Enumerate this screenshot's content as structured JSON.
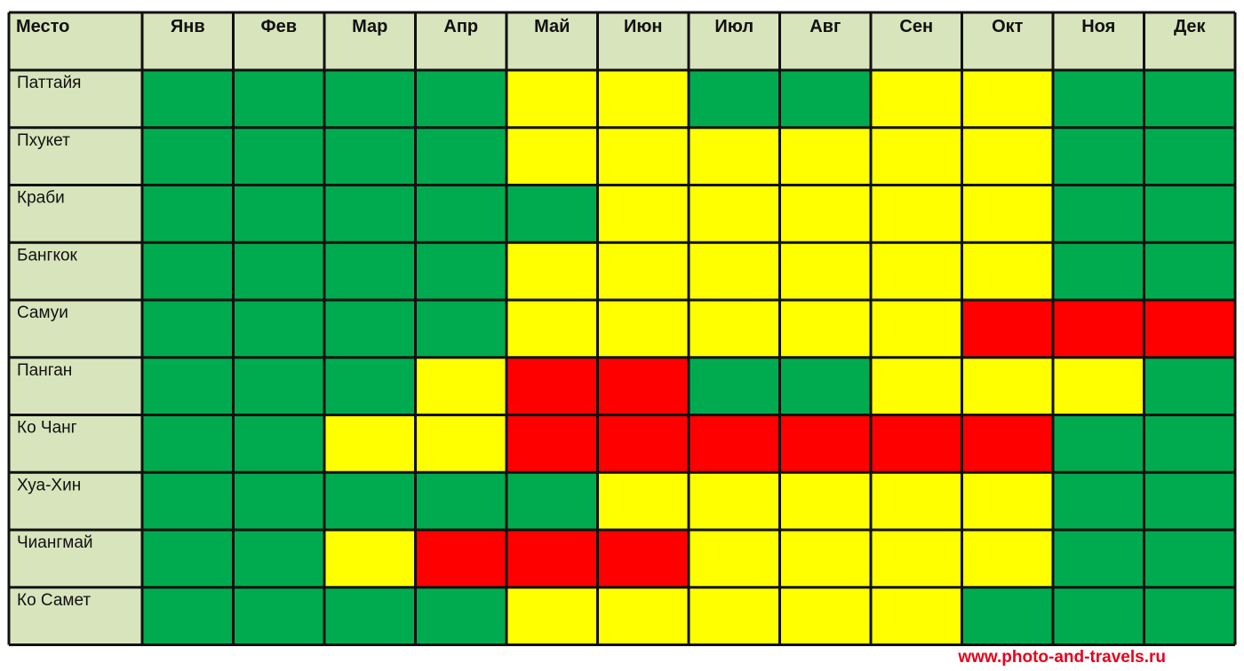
{
  "colors": {
    "good": "#00ab4f",
    "medium": "#ffff00",
    "bad": "#ff0000",
    "header_bg": "#d8e4bc",
    "grid": "#111111"
  },
  "watermark": "www.photo-and-travels.ru",
  "chart_data": {
    "type": "heatmap",
    "corner_label": "Место",
    "columns": [
      "Янв",
      "Фев",
      "Мар",
      "Апр",
      "Май",
      "Июн",
      "Июл",
      "Авг",
      "Сен",
      "Окт",
      "Ноя",
      "Дек"
    ],
    "rows": [
      {
        "name": "Паттайя",
        "values": [
          "good",
          "good",
          "good",
          "good",
          "medium",
          "medium",
          "good",
          "good",
          "medium",
          "medium",
          "good",
          "good"
        ]
      },
      {
        "name": "Пхукет",
        "values": [
          "good",
          "good",
          "good",
          "good",
          "medium",
          "medium",
          "medium",
          "medium",
          "medium",
          "medium",
          "good",
          "good"
        ]
      },
      {
        "name": "Краби",
        "values": [
          "good",
          "good",
          "good",
          "good",
          "good",
          "medium",
          "medium",
          "medium",
          "medium",
          "medium",
          "good",
          "good"
        ]
      },
      {
        "name": "Бангкок",
        "values": [
          "good",
          "good",
          "good",
          "good",
          "medium",
          "medium",
          "medium",
          "medium",
          "medium",
          "medium",
          "good",
          "good"
        ]
      },
      {
        "name": "Самуи",
        "values": [
          "good",
          "good",
          "good",
          "good",
          "medium",
          "medium",
          "medium",
          "medium",
          "medium",
          "bad",
          "bad",
          "bad"
        ]
      },
      {
        "name": "Панган",
        "values": [
          "good",
          "good",
          "good",
          "medium",
          "bad",
          "bad",
          "good",
          "good",
          "medium",
          "medium",
          "medium",
          "good"
        ]
      },
      {
        "name": "Ко Чанг",
        "values": [
          "good",
          "good",
          "medium",
          "medium",
          "bad",
          "bad",
          "bad",
          "bad",
          "bad",
          "bad",
          "good",
          "good"
        ]
      },
      {
        "name": "Хуа-Хин",
        "values": [
          "good",
          "good",
          "good",
          "good",
          "good",
          "medium",
          "medium",
          "medium",
          "medium",
          "medium",
          "good",
          "good"
        ]
      },
      {
        "name": "Чиангмай",
        "values": [
          "good",
          "good",
          "medium",
          "bad",
          "bad",
          "bad",
          "medium",
          "medium",
          "medium",
          "medium",
          "good",
          "good"
        ]
      },
      {
        "name": "Ко Самет",
        "values": [
          "good",
          "good",
          "good",
          "good",
          "medium",
          "medium",
          "medium",
          "medium",
          "medium",
          "good",
          "good",
          "good"
        ]
      }
    ]
  }
}
